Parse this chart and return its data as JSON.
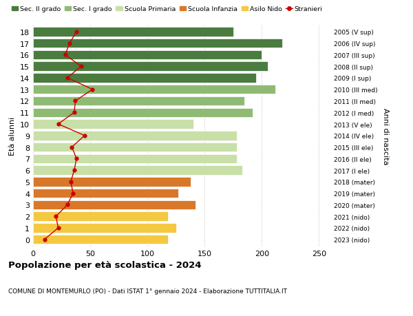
{
  "ages": [
    18,
    17,
    16,
    15,
    14,
    13,
    12,
    11,
    10,
    9,
    8,
    7,
    6,
    5,
    4,
    3,
    2,
    1,
    0
  ],
  "bar_values": [
    175,
    218,
    200,
    205,
    195,
    212,
    185,
    192,
    140,
    178,
    178,
    178,
    183,
    138,
    127,
    142,
    118,
    125,
    118
  ],
  "bar_colors": [
    "#4a7c3f",
    "#4a7c3f",
    "#4a7c3f",
    "#4a7c3f",
    "#4a7c3f",
    "#8fba74",
    "#8fba74",
    "#8fba74",
    "#c8dfa8",
    "#c8dfa8",
    "#c8dfa8",
    "#c8dfa8",
    "#c8dfa8",
    "#d97828",
    "#d97828",
    "#d97828",
    "#f5c842",
    "#f5c842",
    "#f5c842"
  ],
  "stranieri_values": [
    38,
    32,
    28,
    42,
    30,
    52,
    37,
    36,
    22,
    45,
    34,
    38,
    36,
    33,
    35,
    30,
    20,
    22,
    10
  ],
  "right_labels": [
    "2005 (V sup)",
    "2006 (IV sup)",
    "2007 (III sup)",
    "2008 (II sup)",
    "2009 (I sup)",
    "2010 (III med)",
    "2011 (II med)",
    "2012 (I med)",
    "2013 (V ele)",
    "2014 (IV ele)",
    "2015 (III ele)",
    "2016 (II ele)",
    "2017 (I ele)",
    "2018 (mater)",
    "2019 (mater)",
    "2020 (mater)",
    "2021 (nido)",
    "2022 (nido)",
    "2023 (nido)"
  ],
  "legend_labels": [
    "Sec. II grado",
    "Sec. I grado",
    "Scuola Primaria",
    "Scuola Infanzia",
    "Asilo Nido",
    "Stranieri"
  ],
  "legend_colors": [
    "#4a7c3f",
    "#8fba74",
    "#c8dfa8",
    "#d97828",
    "#f5c842",
    "#cc0000"
  ],
  "ylabel": "Età alunni",
  "right_ylabel": "Anni di nascita",
  "title": "Popolazione per età scolastica - 2024",
  "subtitle": "COMUNE DI MONTEMURLO (PO) - Dati ISTAT 1° gennaio 2024 - Elaborazione TUTTITALIA.IT",
  "xlim": [
    0,
    260
  ],
  "xticks": [
    0,
    50,
    100,
    150,
    200,
    250
  ],
  "bar_height": 0.8,
  "stranieri_color": "#cc0000",
  "bg_color": "#ffffff",
  "grid_color": "#cccccc"
}
